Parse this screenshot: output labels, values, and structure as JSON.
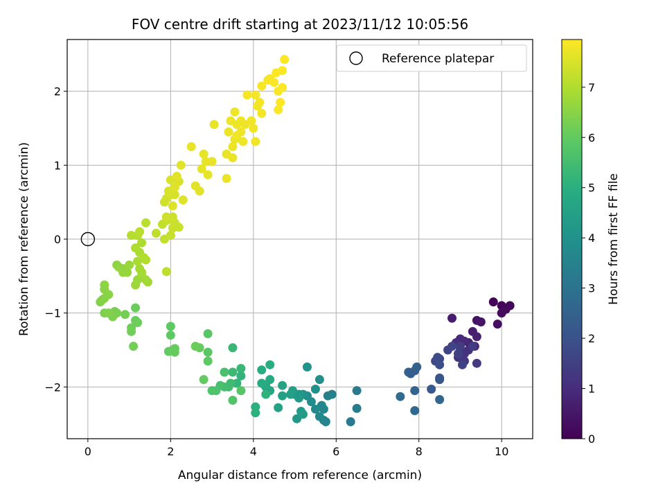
{
  "chart_data": {
    "type": "scatter",
    "title": "FOV centre drift starting at 2023/11/12 10:05:56",
    "xlabel": "Angular distance from reference (arcmin)",
    "ylabel": "Rotation from reference (arcmin)",
    "xlim": [
      -0.5,
      10.75
    ],
    "ylim": [
      -2.7,
      2.7
    ],
    "xticks": [
      0,
      2,
      4,
      6,
      8,
      10
    ],
    "yticks": [
      -2,
      -1,
      0,
      1,
      2
    ],
    "grid": true,
    "legend": {
      "position": "top-right",
      "entries": [
        "Reference platepar"
      ]
    },
    "reference_point": {
      "x": 0,
      "y": 0,
      "label": "Reference platepar"
    },
    "colorbar": {
      "label": "Hours from first FF file",
      "colormap": "viridis",
      "range": [
        0,
        7.95
      ],
      "ticks": [
        0,
        1,
        2,
        3,
        4,
        5,
        6,
        7
      ]
    },
    "series": [
      {
        "points": [
          [
            9.8,
            -0.85,
            0.05
          ],
          [
            10.0,
            -0.9,
            0.1
          ],
          [
            10.2,
            -0.9,
            0.15
          ],
          [
            10.1,
            -0.95,
            0.2
          ],
          [
            10.0,
            -1.0,
            0.25
          ],
          [
            9.9,
            -1.15,
            0.3
          ],
          [
            9.4,
            -1.1,
            0.4
          ],
          [
            9.5,
            -1.12,
            0.45
          ],
          [
            8.8,
            -1.07,
            0.6
          ],
          [
            9.3,
            -1.25,
            0.7
          ],
          [
            9.4,
            -1.32,
            0.75
          ],
          [
            9.2,
            -1.4,
            0.8
          ],
          [
            9.35,
            -1.45,
            0.85
          ],
          [
            9.0,
            -1.35,
            0.9
          ],
          [
            9.1,
            -1.38,
            0.95
          ],
          [
            8.9,
            -1.4,
            1.0
          ],
          [
            9.2,
            -1.5,
            1.05
          ],
          [
            9.0,
            -1.5,
            1.1
          ],
          [
            9.1,
            -1.55,
            1.15
          ],
          [
            8.95,
            -1.6,
            1.2
          ],
          [
            9.05,
            -1.62,
            1.25
          ],
          [
            9.1,
            -1.65,
            1.3
          ],
          [
            9.4,
            -1.68,
            1.35
          ],
          [
            9.3,
            -1.45,
            1.4
          ],
          [
            9.0,
            -1.45,
            1.45
          ],
          [
            8.95,
            -1.55,
            1.5
          ],
          [
            9.05,
            -1.7,
            1.55
          ],
          [
            8.7,
            -1.5,
            1.6
          ],
          [
            8.8,
            -1.45,
            1.65
          ],
          [
            8.5,
            -1.62,
            1.7
          ],
          [
            8.4,
            -1.65,
            1.75
          ],
          [
            8.45,
            -1.6,
            1.8
          ],
          [
            8.5,
            -1.7,
            1.85
          ],
          [
            8.5,
            -1.88,
            2.0
          ],
          [
            8.5,
            -1.9,
            2.1
          ],
          [
            8.3,
            -2.03,
            2.2
          ],
          [
            7.9,
            -1.78,
            2.3
          ],
          [
            7.8,
            -1.82,
            2.35
          ],
          [
            7.75,
            -1.8,
            2.4
          ],
          [
            7.95,
            -1.73,
            2.45
          ],
          [
            7.9,
            -2.05,
            2.55
          ],
          [
            8.5,
            -2.17,
            2.6
          ],
          [
            7.9,
            -2.32,
            2.7
          ],
          [
            7.55,
            -2.13,
            2.8
          ],
          [
            6.35,
            -2.47,
            3.2
          ],
          [
            6.5,
            -2.05,
            3.25
          ],
          [
            6.5,
            -2.29,
            3.3
          ],
          [
            5.9,
            -2.1,
            3.4
          ],
          [
            5.8,
            -2.12,
            3.45
          ],
          [
            5.7,
            -2.45,
            3.5
          ],
          [
            5.75,
            -2.47,
            3.55
          ],
          [
            5.7,
            -2.3,
            3.6
          ],
          [
            5.65,
            -2.25,
            3.65
          ],
          [
            5.6,
            -2.4,
            3.7
          ],
          [
            5.5,
            -2.3,
            3.75
          ],
          [
            5.4,
            -2.2,
            3.8
          ],
          [
            5.3,
            -2.12,
            3.85
          ],
          [
            5.6,
            -1.9,
            3.9
          ],
          [
            5.5,
            -2.03,
            3.95
          ],
          [
            5.3,
            -1.73,
            4.0
          ],
          [
            5.2,
            -2.1,
            4.05
          ],
          [
            5.1,
            -2.1,
            4.1
          ],
          [
            5.0,
            -2.1,
            4.15
          ],
          [
            5.05,
            -2.43,
            4.2
          ],
          [
            5.15,
            -2.33,
            4.25
          ],
          [
            5.1,
            -2.15,
            4.3
          ],
          [
            5.2,
            -2.37,
            4.35
          ],
          [
            4.95,
            -2.05,
            4.4
          ],
          [
            4.9,
            -2.1,
            4.45
          ],
          [
            4.7,
            -2.12,
            4.5
          ],
          [
            4.6,
            -2.28,
            4.55
          ],
          [
            4.7,
            -1.98,
            4.6
          ],
          [
            4.4,
            -2.05,
            4.65
          ],
          [
            4.3,
            -2.0,
            4.7
          ],
          [
            4.4,
            -1.9,
            4.75
          ],
          [
            4.3,
            -1.97,
            4.8
          ],
          [
            4.2,
            -1.95,
            4.85
          ],
          [
            4.4,
            -1.7,
            4.9
          ],
          [
            4.2,
            -1.77,
            4.95
          ],
          [
            4.05,
            -2.27,
            5.0
          ],
          [
            4.05,
            -2.35,
            5.05
          ],
          [
            4.3,
            -2.1,
            5.1
          ],
          [
            3.7,
            -1.85,
            5.15
          ],
          [
            3.6,
            -1.95,
            5.2
          ],
          [
            3.7,
            -1.75,
            5.25
          ],
          [
            3.5,
            -1.47,
            5.3
          ],
          [
            3.5,
            -1.8,
            5.35
          ],
          [
            3.45,
            -1.95,
            5.4
          ],
          [
            3.4,
            -2.0,
            5.45
          ],
          [
            3.3,
            -2.0,
            5.5
          ],
          [
            3.2,
            -1.98,
            5.55
          ],
          [
            3.3,
            -1.8,
            5.6
          ],
          [
            3.1,
            -2.05,
            5.65
          ],
          [
            3.0,
            -2.05,
            5.7
          ],
          [
            3.5,
            -2.18,
            5.75
          ],
          [
            3.7,
            -2.05,
            5.8
          ],
          [
            2.9,
            -1.28,
            5.85
          ],
          [
            2.9,
            -1.53,
            5.9
          ],
          [
            2.9,
            -1.65,
            5.95
          ],
          [
            2.8,
            -1.9,
            6.0
          ],
          [
            2.7,
            -1.47,
            6.05
          ],
          [
            2.6,
            -1.45,
            6.1
          ],
          [
            2.0,
            -1.18,
            5.95
          ],
          [
            2.0,
            -1.3,
            5.95
          ],
          [
            2.05,
            -1.5,
            6.0
          ],
          [
            1.95,
            -1.52,
            6.0
          ],
          [
            2.1,
            -1.53,
            6.05
          ],
          [
            2.1,
            -1.48,
            6.05
          ],
          [
            1.15,
            -0.93,
            6.1
          ],
          [
            1.15,
            -1.1,
            6.1
          ],
          [
            1.2,
            -1.13,
            6.15
          ],
          [
            1.05,
            -1.2,
            6.15
          ],
          [
            1.05,
            -1.25,
            6.2
          ],
          [
            1.1,
            -1.45,
            6.2
          ],
          [
            0.9,
            -1.02,
            6.25
          ],
          [
            0.65,
            -0.98,
            6.25
          ],
          [
            0.7,
            -1.0,
            6.3
          ],
          [
            0.6,
            -1.02,
            6.3
          ],
          [
            0.6,
            -1.05,
            6.35
          ],
          [
            0.4,
            -1.0,
            6.35
          ],
          [
            0.5,
            -1.0,
            6.4
          ],
          [
            0.3,
            -0.85,
            6.4
          ],
          [
            0.35,
            -0.82,
            6.45
          ],
          [
            0.4,
            -0.8,
            6.45
          ],
          [
            0.5,
            -0.75,
            6.5
          ],
          [
            0.4,
            -0.68,
            6.5
          ],
          [
            0.4,
            -0.62,
            6.55
          ],
          [
            0.7,
            -0.35,
            6.55
          ],
          [
            0.75,
            -0.38,
            6.6
          ],
          [
            0.85,
            -0.4,
            6.6
          ],
          [
            0.85,
            -0.45,
            6.65
          ],
          [
            0.95,
            -0.45,
            6.65
          ],
          [
            1.0,
            -0.35,
            6.7
          ],
          [
            1.2,
            -0.55,
            6.7
          ],
          [
            1.15,
            -0.62,
            6.75
          ],
          [
            1.3,
            -0.5,
            6.75
          ],
          [
            1.4,
            -0.55,
            6.8
          ],
          [
            1.45,
            -0.58,
            6.8
          ],
          [
            1.25,
            -0.4,
            6.85
          ],
          [
            1.3,
            -0.45,
            6.85
          ],
          [
            1.2,
            -0.3,
            6.9
          ],
          [
            1.25,
            -0.18,
            6.9
          ],
          [
            1.15,
            -0.12,
            6.95
          ],
          [
            1.3,
            -0.05,
            6.95
          ],
          [
            1.35,
            -0.25,
            7.0
          ],
          [
            1.4,
            -0.28,
            7.0
          ],
          [
            1.2,
            0.05,
            7.05
          ],
          [
            1.05,
            0.05,
            7.05
          ],
          [
            1.25,
            0.1,
            7.1
          ],
          [
            1.4,
            0.22,
            7.1
          ],
          [
            1.9,
            -0.44,
            7.15
          ],
          [
            1.65,
            0.08,
            7.15
          ],
          [
            1.85,
            0.0,
            7.2
          ],
          [
            1.8,
            0.2,
            7.2
          ],
          [
            1.9,
            0.25,
            7.25
          ],
          [
            2.0,
            0.05,
            7.25
          ],
          [
            2.05,
            0.15,
            7.3
          ],
          [
            2.2,
            0.16,
            7.3
          ],
          [
            2.1,
            0.22,
            7.3
          ],
          [
            1.9,
            0.3,
            7.35
          ],
          [
            2.05,
            0.3,
            7.35
          ],
          [
            1.85,
            0.5,
            7.4
          ],
          [
            1.9,
            0.55,
            7.4
          ],
          [
            2.0,
            0.6,
            7.45
          ],
          [
            2.1,
            0.6,
            7.45
          ],
          [
            1.95,
            0.65,
            7.5
          ],
          [
            2.0,
            0.8,
            7.5
          ],
          [
            2.2,
            0.78,
            7.5
          ],
          [
            2.1,
            0.7,
            7.55
          ],
          [
            2.05,
            0.45,
            7.55
          ],
          [
            2.3,
            0.53,
            7.55
          ],
          [
            2.15,
            0.85,
            7.6
          ],
          [
            2.25,
            1.0,
            7.6
          ],
          [
            2.6,
            0.72,
            7.6
          ],
          [
            2.7,
            0.65,
            7.6
          ],
          [
            2.75,
            0.95,
            7.65
          ],
          [
            2.9,
            0.87,
            7.65
          ],
          [
            2.8,
            1.15,
            7.65
          ],
          [
            2.85,
            1.05,
            7.65
          ],
          [
            3.0,
            1.05,
            7.7
          ],
          [
            2.5,
            1.25,
            7.7
          ],
          [
            3.05,
            1.55,
            7.7
          ],
          [
            3.35,
            0.82,
            7.7
          ],
          [
            3.35,
            1.15,
            7.72
          ],
          [
            3.5,
            1.1,
            7.72
          ],
          [
            3.5,
            1.25,
            7.74
          ],
          [
            3.55,
            1.35,
            7.74
          ],
          [
            3.6,
            1.4,
            7.76
          ],
          [
            3.7,
            1.45,
            7.76
          ],
          [
            3.8,
            1.55,
            7.78
          ],
          [
            3.75,
            1.32,
            7.78
          ],
          [
            4.05,
            1.32,
            7.8
          ],
          [
            4.0,
            1.5,
            7.8
          ],
          [
            3.95,
            1.6,
            7.8
          ],
          [
            4.1,
            1.8,
            7.82
          ],
          [
            4.2,
            1.7,
            7.82
          ],
          [
            4.05,
            1.95,
            7.84
          ],
          [
            4.15,
            1.85,
            7.84
          ],
          [
            3.85,
            1.95,
            7.86
          ],
          [
            4.2,
            2.07,
            7.86
          ],
          [
            4.35,
            2.15,
            7.88
          ],
          [
            4.4,
            2.17,
            7.88
          ],
          [
            4.5,
            2.12,
            7.9
          ],
          [
            4.6,
            2.0,
            7.9
          ],
          [
            4.7,
            2.05,
            7.92
          ],
          [
            4.55,
            2.25,
            7.92
          ],
          [
            4.65,
            1.85,
            7.93
          ],
          [
            4.6,
            1.75,
            7.93
          ],
          [
            4.7,
            2.28,
            7.94
          ],
          [
            4.75,
            2.43,
            7.95
          ],
          [
            3.6,
            1.55,
            7.75
          ],
          [
            3.55,
            1.72,
            7.75
          ],
          [
            3.4,
            1.45,
            7.74
          ],
          [
            3.7,
            1.6,
            7.76
          ],
          [
            3.45,
            1.6,
            7.75
          ]
        ]
      }
    ]
  }
}
